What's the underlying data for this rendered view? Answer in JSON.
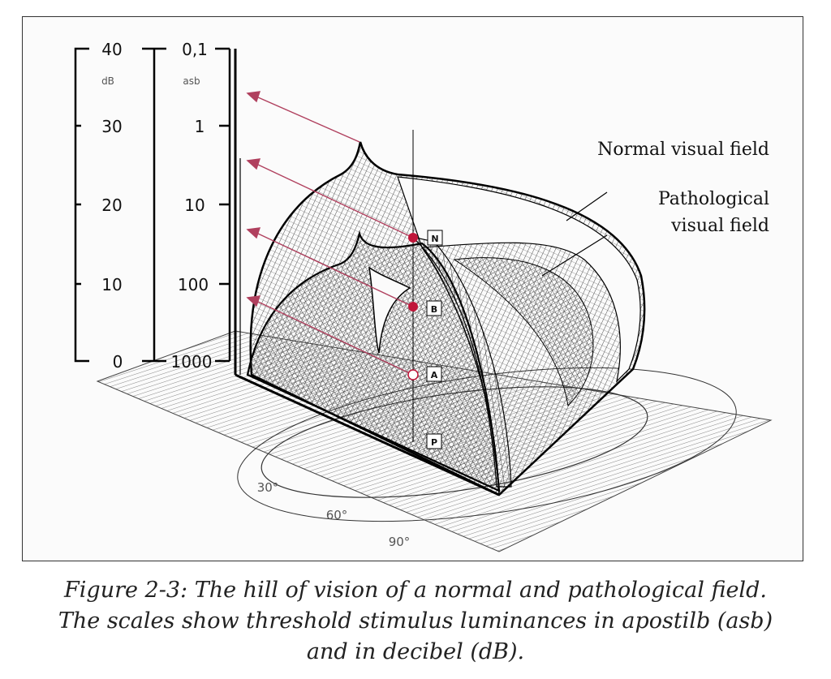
{
  "figure": {
    "db_scale": {
      "unit": "dB",
      "ticks": [
        "40",
        "30",
        "20",
        "10",
        "0"
      ]
    },
    "asb_scale": {
      "unit": "asb",
      "ticks": [
        "0,1",
        "1",
        "10",
        "100",
        "1000"
      ]
    },
    "annotations": {
      "normal": "Normal visual field",
      "pathological_line1": "Pathological",
      "pathological_line2": "visual field"
    },
    "points": [
      "N",
      "B",
      "A",
      "P"
    ],
    "angles": [
      "30°",
      "60°",
      "90°"
    ],
    "colors": {
      "arrow": "#b0405e",
      "marker": "#c0163a",
      "ink": "#111111"
    }
  },
  "caption": {
    "line1": "Figure 2-3: The hill of vision of a normal and pathological field.",
    "line2": "The scales show threshold stimulus luminances in apostilb (asb)",
    "line3": "and in decibel (dB)."
  }
}
